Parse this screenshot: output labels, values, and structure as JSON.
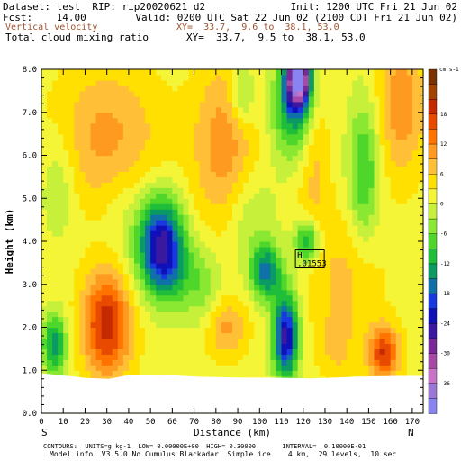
{
  "header": {
    "line1_left": "Dataset: test  RIP: rip20020621 d2",
    "line1_right": "Init: 1200 UTC Fri 21 Jun 02",
    "line2_left": "Fcst:    14.00",
    "line2_right": "Valid: 0200 UTC Sat 22 Jun 02 (2100 CDT Fri 21 Jun 02)",
    "line3_left": "Vertical velocity",
    "line3_right": "XY=  33.7,  9.6 to  38.1, 53.0",
    "line4_left": "Total cloud mixing ratio",
    "line4_right": "XY=  33.7,  9.5 to  38.1, 53.0"
  },
  "footer": {
    "contours": "CONTOURS:  UNITS=g kg-1  LOW= 0.00000E+00  HIGH= 0.30000       INTERVAL=  0.10000E-01",
    "model": "Model info: V3.5.0 No Cumulus Blackadar  Simple ice    4 km,  29 levels,  10 sec"
  },
  "colors": {
    "terrain": "#ffffff",
    "frame": "#000000",
    "header_brown": "#a0522d"
  },
  "chart_data": {
    "type": "heatmap",
    "xlabel": "Distance (km)",
    "ylabel": "Height (km)",
    "xlim": [
      0,
      175
    ],
    "ylim": [
      0,
      8
    ],
    "xticks": [
      "0",
      "10",
      "20",
      "30",
      "40",
      "50",
      "60",
      "70",
      "80",
      "90",
      "100",
      "110",
      "120",
      "130",
      "140",
      "150",
      "160",
      "170"
    ],
    "yticks": [
      "0.0",
      "1.0",
      "2.0",
      "3.0",
      "4.0",
      "5.0",
      "6.0",
      "7.0",
      "8.0"
    ],
    "end_labels": {
      "left": "S",
      "right": "N"
    },
    "colorbar": {
      "unit": "cm s-1",
      "labels": [
        "18",
        "12",
        "6",
        "0",
        "-6",
        "-12",
        "-18",
        "-24",
        "-30",
        "-36"
      ],
      "colors": [
        "#7a3200",
        "#a34300",
        "#c62a00",
        "#e84a00",
        "#ff7300",
        "#ff9a20",
        "#ffc038",
        "#ffe000",
        "#f5f537",
        "#c6f03a",
        "#8ae832",
        "#4ed62a",
        "#1fbd3a",
        "#0a9a62",
        "#1070a8",
        "#1838e0",
        "#1010b8",
        "#3a18a0",
        "#7a2a98",
        "#a64aa8",
        "#c873c8",
        "#9c78d6",
        "#8a84f0"
      ]
    },
    "terrain_height_km": [
      0.93,
      0.88,
      0.82,
      0.8,
      0.9,
      0.9,
      0.88,
      0.85,
      0.84,
      0.83,
      0.83,
      0.82,
      0.81,
      0.83,
      0.85,
      0.86,
      0.87,
      0.87
    ],
    "annotation": {
      "label": "H",
      "value": ".01553",
      "x": 128,
      "y": 3.55
    },
    "features": [
      {
        "x": 118,
        "y": 7.8,
        "amp": -34,
        "sx": 4,
        "sy": 0.45
      },
      {
        "x": 116,
        "y": 7.1,
        "amp": -14,
        "sx": 7,
        "sy": 0.8
      },
      {
        "x": 92,
        "y": 7.4,
        "amp": -8,
        "sx": 4,
        "sy": 0.5
      },
      {
        "x": 55,
        "y": 4.1,
        "amp": -20,
        "sx": 7,
        "sy": 0.7
      },
      {
        "x": 58,
        "y": 3.3,
        "amp": -10,
        "sx": 9,
        "sy": 0.6
      },
      {
        "x": 103,
        "y": 3.3,
        "amp": -16,
        "sx": 5,
        "sy": 0.45
      },
      {
        "x": 112,
        "y": 1.8,
        "amp": -24,
        "sx": 4,
        "sy": 0.7
      },
      {
        "x": 122,
        "y": 4.0,
        "amp": -14,
        "sx": 4,
        "sy": 0.35
      },
      {
        "x": 6,
        "y": 1.6,
        "amp": -14,
        "sx": 4,
        "sy": 0.5
      },
      {
        "x": 148,
        "y": 5.6,
        "amp": -10,
        "sx": 5,
        "sy": 1.2
      },
      {
        "x": 30,
        "y": 2.1,
        "amp": 17,
        "sx": 8,
        "sy": 0.9
      },
      {
        "x": 157,
        "y": 1.4,
        "amp": 15,
        "sx": 5,
        "sy": 0.45
      },
      {
        "x": 84,
        "y": 2.0,
        "amp": 8,
        "sx": 7,
        "sy": 0.5
      },
      {
        "x": 84,
        "y": 6.2,
        "amp": 9,
        "sx": 10,
        "sy": 1.4
      },
      {
        "x": 30,
        "y": 6.4,
        "amp": 8,
        "sx": 18,
        "sy": 1.2
      },
      {
        "x": 165,
        "y": 7.2,
        "amp": 9,
        "sx": 8,
        "sy": 1.2
      },
      {
        "x": 140,
        "y": 3.2,
        "amp": 5,
        "sx": 12,
        "sy": 1.1
      },
      {
        "x": 125,
        "y": 6.3,
        "amp": 6,
        "sx": 5,
        "sy": 1.6
      },
      {
        "x": 8,
        "y": 5.4,
        "amp": -5,
        "sx": 6,
        "sy": 0.9
      },
      {
        "x": 40,
        "y": 4.5,
        "amp": -3,
        "sx": 10,
        "sy": 1.0
      },
      {
        "x": 95,
        "y": 4.6,
        "amp": -5,
        "sx": 8,
        "sy": 0.8
      },
      {
        "x": 75,
        "y": 2.8,
        "amp": -5,
        "sx": 6,
        "sy": 0.7
      },
      {
        "x": 135,
        "y": 1.5,
        "amp": 4,
        "sx": 6,
        "sy": 0.6
      }
    ]
  }
}
